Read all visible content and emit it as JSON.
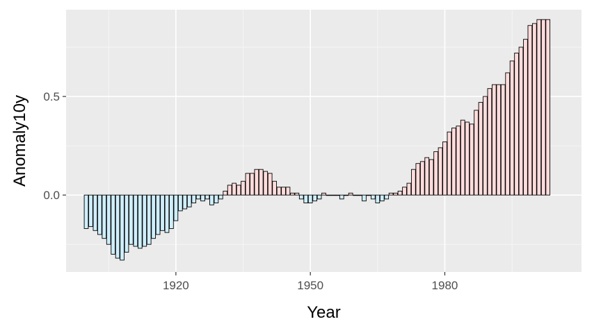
{
  "chart_data": {
    "type": "bar",
    "xlabel": "Year",
    "ylabel": "Anomaly10y",
    "x": [
      1900,
      1901,
      1902,
      1903,
      1904,
      1905,
      1906,
      1907,
      1908,
      1909,
      1910,
      1911,
      1912,
      1913,
      1914,
      1915,
      1916,
      1917,
      1918,
      1919,
      1920,
      1921,
      1922,
      1923,
      1924,
      1925,
      1926,
      1927,
      1928,
      1929,
      1930,
      1931,
      1932,
      1933,
      1934,
      1935,
      1936,
      1937,
      1938,
      1939,
      1940,
      1941,
      1942,
      1943,
      1944,
      1945,
      1946,
      1947,
      1948,
      1949,
      1950,
      1951,
      1952,
      1953,
      1954,
      1955,
      1956,
      1957,
      1958,
      1959,
      1960,
      1961,
      1962,
      1963,
      1964,
      1965,
      1966,
      1967,
      1968,
      1969,
      1970,
      1971,
      1972,
      1973,
      1974,
      1975,
      1976,
      1977,
      1978,
      1979,
      1980,
      1981,
      1982,
      1983,
      1984,
      1985,
      1986,
      1987,
      1988,
      1989,
      1990,
      1991,
      1992,
      1993,
      1994,
      1995,
      1996,
      1997,
      1998,
      1999,
      2000,
      2001,
      2002,
      2003
    ],
    "values": [
      -0.17,
      -0.16,
      -0.18,
      -0.2,
      -0.22,
      -0.25,
      -0.3,
      -0.32,
      -0.33,
      -0.29,
      -0.25,
      -0.26,
      -0.27,
      -0.26,
      -0.25,
      -0.22,
      -0.2,
      -0.18,
      -0.19,
      -0.17,
      -0.13,
      -0.08,
      -0.07,
      -0.06,
      -0.04,
      -0.02,
      -0.03,
      -0.02,
      -0.05,
      -0.04,
      -0.02,
      0.02,
      0.05,
      0.06,
      0.05,
      0.07,
      0.11,
      0.11,
      0.13,
      0.13,
      0.12,
      0.11,
      0.07,
      0.04,
      0.04,
      0.04,
      0.01,
      0.01,
      -0.02,
      -0.04,
      -0.04,
      -0.03,
      -0.02,
      0.01,
      0.0,
      0.0,
      0.0,
      -0.02,
      0.0,
      0.01,
      0.0,
      0.0,
      -0.03,
      0.0,
      -0.02,
      -0.04,
      -0.03,
      -0.02,
      0.01,
      0.01,
      0.02,
      0.04,
      0.06,
      0.13,
      0.16,
      0.17,
      0.19,
      0.18,
      0.22,
      0.24,
      0.27,
      0.32,
      0.34,
      0.35,
      0.38,
      0.37,
      0.36,
      0.43,
      0.47,
      0.5,
      0.54,
      0.56,
      0.56,
      0.56,
      0.62,
      0.68,
      0.72,
      0.75,
      0.79,
      0.86,
      0.87,
      0.89,
      0.89,
      0.89
    ],
    "x_ticks": [
      1920,
      1950,
      1980
    ],
    "y_ticks": [
      0.0,
      0.5
    ],
    "y_tick_labels": [
      "0.0",
      "0.5"
    ],
    "xlim": [
      1895.5,
      2010.5
    ],
    "ylim": [
      -0.39,
      0.94
    ],
    "colors": {
      "positive_fill": "#ffdcdc",
      "negative_fill": "#cfeefb",
      "bar_stroke": "#000000",
      "panel_bg": "#ebebeb",
      "grid_major": "#ffffff",
      "grid_minor": "#f5f5f5"
    },
    "grid": true,
    "legend": "none"
  }
}
